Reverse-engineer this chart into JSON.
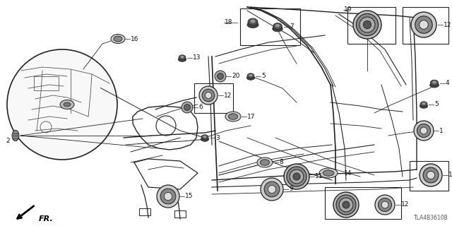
{
  "bg_color": "#ffffff",
  "line_color": "#222222",
  "part_number_code": "TLA4B3610B",
  "fig_width": 6.4,
  "fig_height": 3.2,
  "dpi": 100
}
